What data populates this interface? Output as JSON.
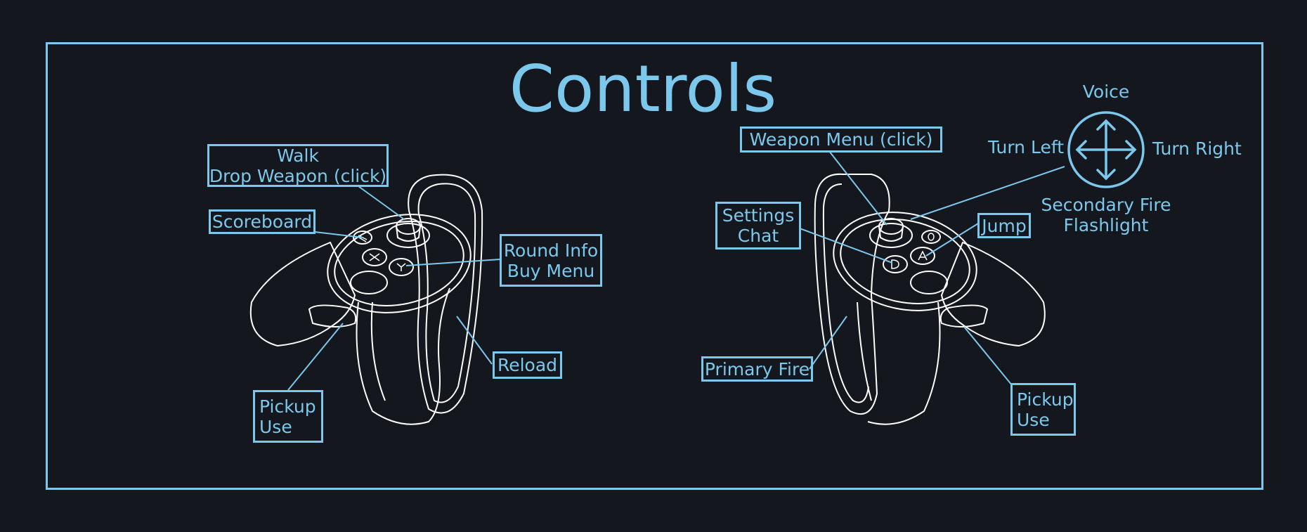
{
  "title": "Controls",
  "colors": {
    "accent": "#7cc8ec",
    "background": "#14171d",
    "controller": "#ffffff"
  },
  "left_controller": {
    "thumbstick": {
      "line1": "Walk",
      "line2": "Drop Weapon (click)"
    },
    "menu_button": {
      "label": "Scoreboard"
    },
    "button_y": {
      "line1": "Round Info",
      "line2": "Buy Menu"
    },
    "trigger": {
      "label": "Reload"
    },
    "grip": {
      "line1": "Pickup",
      "line2": "Use"
    }
  },
  "right_controller": {
    "thumbstick_click": {
      "label": "Weapon Menu (click)"
    },
    "button_b": {
      "line1": "Settings",
      "line2": "Chat"
    },
    "button_a": {
      "label": "Jump"
    },
    "trigger": {
      "label": "Primary Fire"
    },
    "grip": {
      "line1": "Pickup",
      "line2": "Use"
    },
    "dpad": {
      "icon": "four-way-arrow-icon",
      "up": "Voice",
      "left": "Turn Left",
      "right": "Turn Right",
      "down_line1": "Secondary Fire",
      "down_line2": "Flashlight"
    }
  }
}
